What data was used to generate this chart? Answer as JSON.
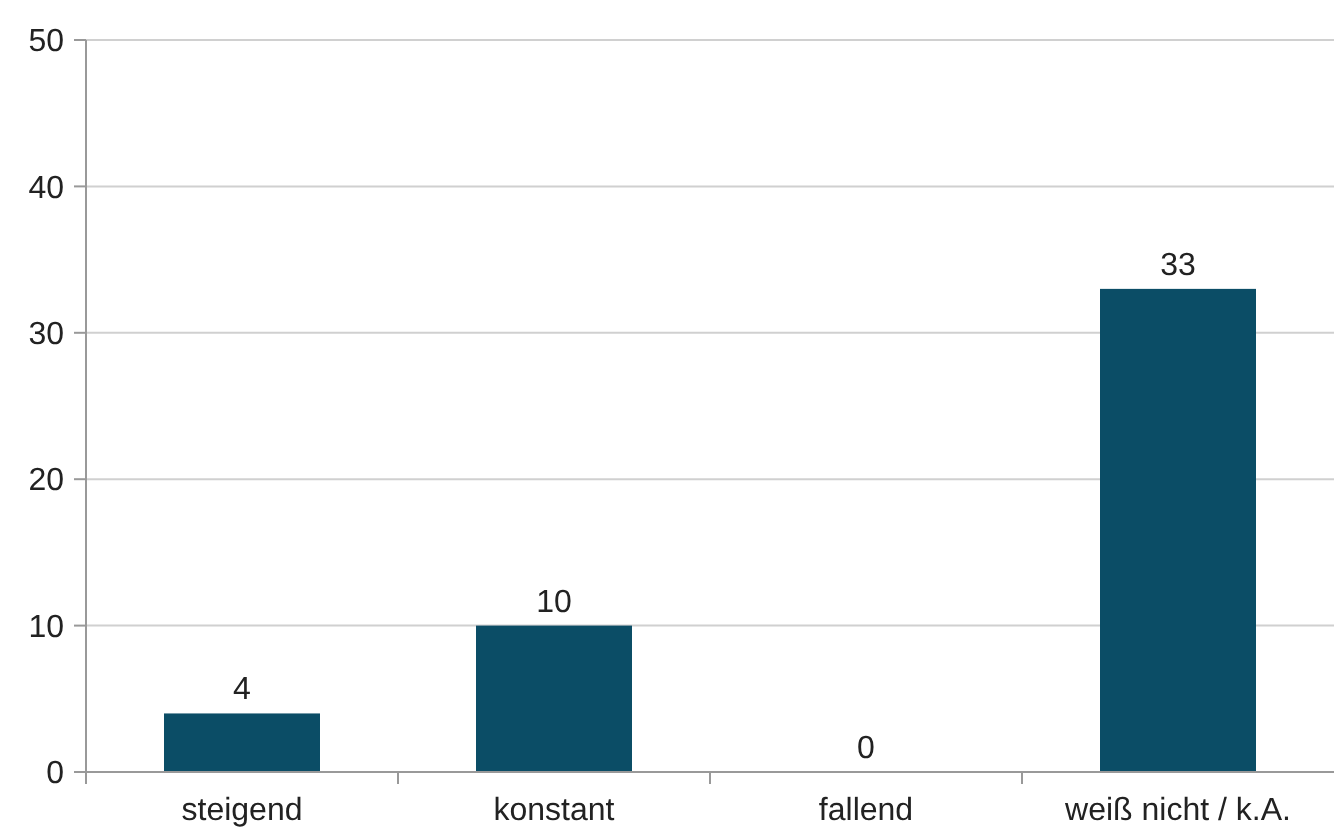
{
  "chart_data": {
    "type": "bar",
    "categories": [
      "steigend",
      "konstant",
      "fallend",
      "weiß nicht / k.A."
    ],
    "values": [
      4,
      10,
      0,
      33
    ],
    "color": "#0b4d66",
    "ylim": [
      0,
      50
    ],
    "yticks": [
      0,
      10,
      20,
      30,
      40,
      50
    ],
    "grid": "y",
    "data_labels": true
  }
}
